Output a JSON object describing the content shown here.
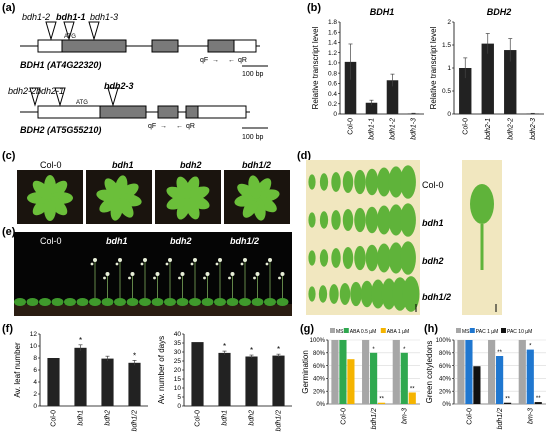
{
  "panel_labels": [
    "(a)",
    "(b)",
    "(c)",
    "(d)",
    "(e)",
    "(f)",
    "(g)",
    "(h)"
  ],
  "panel_a": {
    "gene1": {
      "name": "BDH1 (AT4G22320)",
      "insertions": [
        "bdh1-2",
        "bdh1-1",
        "bdh1-3"
      ],
      "atg": "ATG",
      "primer_f": "qF",
      "primer_r": "qR",
      "scale": "100 bp"
    },
    "gene2": {
      "name": "BDH2 (AT5G55210)",
      "insertions": [
        "bdh2-2",
        "bdh2-1",
        "bdh2-3"
      ],
      "atg": "ATG",
      "primer_f": "qF",
      "primer_r": "qR",
      "scale": "100 bp"
    }
  },
  "panel_c": {
    "labels": [
      "Col-0",
      "bdh1",
      "bdh2",
      "bdh1/2"
    ]
  },
  "panel_d": {
    "labels": [
      "Col-0",
      "bdh1",
      "bdh2",
      "bdh1/2"
    ]
  },
  "panel_e": {
    "labels": [
      "Col-0",
      "bdh1",
      "bdh2",
      "bdh1/2"
    ]
  },
  "colors": {
    "ms": "#a6a6a6",
    "aba05": "#2fa84f",
    "aba1": "#f5b400",
    "pac1": "#1f77d0",
    "pac10": "#111111",
    "bar_black": "#222222",
    "leaf": "#6bbf3a",
    "photo_dark": "#1a140e",
    "photo_light": "#f1e7bf"
  },
  "chart_data": [
    {
      "id": "b1",
      "type": "bar",
      "title": "BDH1",
      "ylabel": "Relative transcript level",
      "categories": [
        "Col-0",
        "bdh1-1",
        "bdh1-2",
        "bdh1-3"
      ],
      "values": [
        1.02,
        0.22,
        0.66,
        0.01
      ],
      "errors": [
        0.35,
        0.05,
        0.12,
        0.005
      ],
      "ylim": [
        0,
        1.8
      ],
      "yticks": [
        "0",
        "0.2",
        "0.4",
        "0.6",
        "0.8",
        "1.0",
        "1.2",
        "1.4",
        "1.6",
        "1.8"
      ],
      "color": "#222222"
    },
    {
      "id": "b2",
      "type": "bar",
      "title": "BDH2",
      "ylabel": "Relative transcript level",
      "categories": [
        "Col-0",
        "bdh2-1",
        "bdh2-2",
        "bdh2-3"
      ],
      "values": [
        1.0,
        1.53,
        1.39,
        0.01
      ],
      "errors": [
        0.22,
        0.22,
        0.25,
        0.005
      ],
      "ylim": [
        0,
        2
      ],
      "yticks": [
        "0",
        "0.5",
        "1",
        "1.5",
        "2"
      ],
      "color": "#222222"
    },
    {
      "id": "f1",
      "type": "bar",
      "ylabel": "Av. leaf number",
      "categories": [
        "Col-0",
        "bdh1",
        "bdh2",
        "bdh1/2"
      ],
      "values": [
        8,
        9.7,
        7.9,
        7.2
      ],
      "errors": [
        0,
        0.5,
        0.4,
        0.4
      ],
      "sig": [
        "",
        "*",
        "",
        "*"
      ],
      "ylim": [
        0,
        12
      ],
      "yticks": [
        "0",
        "2",
        "4",
        "6",
        "8",
        "10",
        "12"
      ],
      "color": "#222222"
    },
    {
      "id": "f2",
      "type": "bar",
      "ylabel": "Av. number of days",
      "categories": [
        "Col-0",
        "bdh1",
        "bdh2",
        "bdh1/2"
      ],
      "values": [
        35.5,
        29.5,
        27.5,
        28
      ],
      "errors": [
        0,
        1,
        0.8,
        0.8
      ],
      "sig": [
        "",
        "*",
        "*",
        "*"
      ],
      "ylim": [
        0,
        40
      ],
      "yticks": [
        "0",
        "5",
        "10",
        "15",
        "20",
        "25",
        "30",
        "35",
        "40"
      ],
      "color": "#222222"
    },
    {
      "id": "g",
      "type": "bar",
      "ylabel": "Germination",
      "categories": [
        "Col-0",
        "bdh1/2",
        "bm-3"
      ],
      "series": [
        {
          "name": "MS",
          "values": [
            100,
            100,
            100
          ],
          "color": "#a6a6a6",
          "sig": [
            "",
            "",
            ""
          ]
        },
        {
          "name": "ABA 0.5 µM",
          "values": [
            100,
            80,
            80
          ],
          "color": "#2fa84f",
          "sig": [
            "",
            "*",
            "*"
          ]
        },
        {
          "name": "ABA 1 µM",
          "values": [
            70,
            2,
            18
          ],
          "color": "#f5b400",
          "sig": [
            "",
            "**",
            "**"
          ]
        }
      ],
      "ylim": [
        0,
        100
      ],
      "yticks": [
        "0%",
        "20%",
        "40%",
        "60%",
        "80%",
        "100%"
      ]
    },
    {
      "id": "h",
      "type": "bar",
      "ylabel": "Green cotyledons",
      "categories": [
        "Col-0",
        "bdh1/2",
        "bm-3"
      ],
      "series": [
        {
          "name": "MS",
          "values": [
            100,
            100,
            100
          ],
          "color": "#a6a6a6",
          "sig": [
            "",
            "",
            ""
          ]
        },
        {
          "name": "PAC 1 µM",
          "values": [
            100,
            75,
            85
          ],
          "color": "#1f77d0",
          "sig": [
            "",
            "**",
            "*"
          ]
        },
        {
          "name": "PAC 10 µM",
          "values": [
            59,
            2,
            3
          ],
          "color": "#111111",
          "sig": [
            "",
            "**",
            "**"
          ]
        }
      ],
      "ylim": [
        0,
        100
      ],
      "yticks": [
        "0%",
        "20%",
        "40%",
        "60%",
        "80%",
        "100%"
      ]
    }
  ]
}
